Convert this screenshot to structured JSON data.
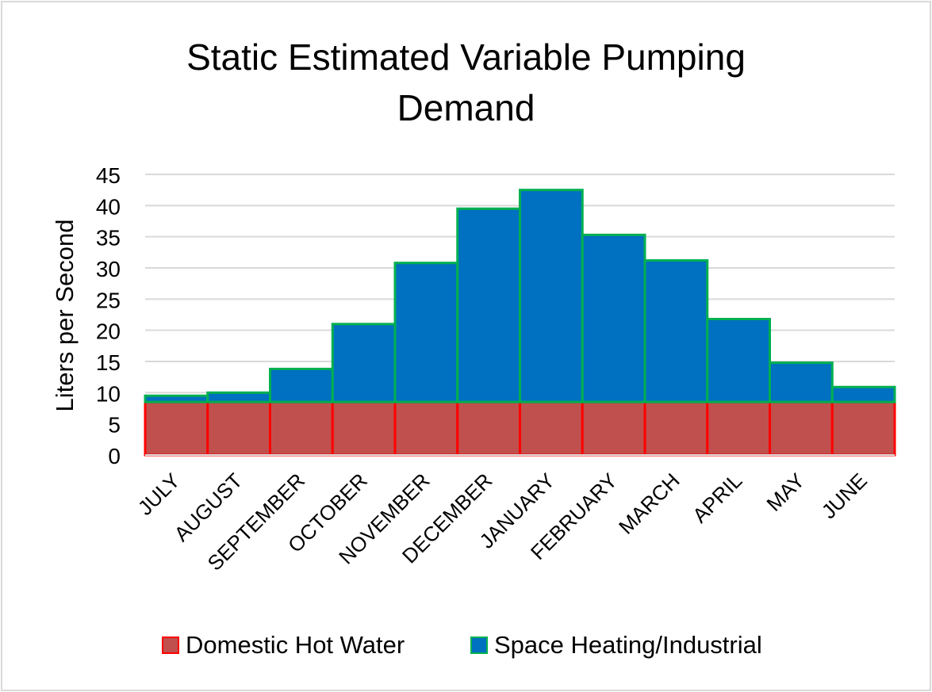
{
  "chart_data": {
    "type": "bar",
    "stacked": true,
    "title": "Static Estimated Variable Pumping Demand",
    "title_lines": [
      "Static Estimated Variable Pumping",
      "Demand"
    ],
    "xlabel": "",
    "ylabel": "Liters per Second",
    "ylim": [
      0,
      45
    ],
    "yticks": [
      0,
      5,
      10,
      15,
      20,
      25,
      30,
      35,
      40,
      45
    ],
    "grid": true,
    "legend_position": "bottom",
    "categories": [
      "JULY",
      "AUGUST",
      "SEPTEMBER",
      "OCTOBER",
      "NOVEMBER",
      "DECEMBER",
      "JANUARY",
      "FEBRUARY",
      "MARCH",
      "APRIL",
      "MAY",
      "JUNE"
    ],
    "series": [
      {
        "name": "Domestic Hot Water",
        "fill": "#c0504d",
        "edge": "#ff0000",
        "values": [
          8.5,
          8.5,
          8.5,
          8.5,
          8.5,
          8.5,
          8.5,
          8.5,
          8.5,
          8.5,
          8.5,
          8.5
        ]
      },
      {
        "name": "Space Heating/Industrial",
        "fill": "#0070c0",
        "edge": "#00b050",
        "values": [
          1.0,
          1.5,
          5.3,
          12.5,
          22.3,
          31.0,
          34.0,
          26.8,
          22.7,
          13.3,
          6.3,
          2.4
        ]
      }
    ]
  }
}
